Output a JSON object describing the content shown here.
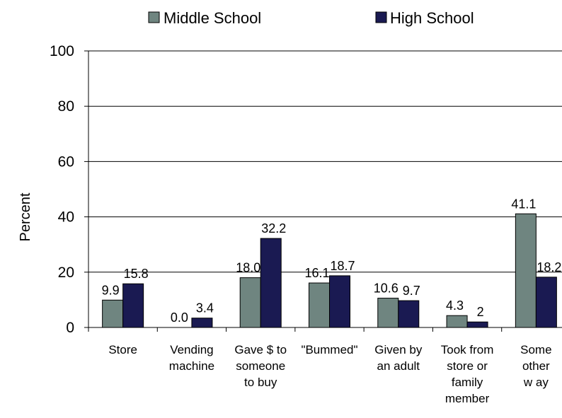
{
  "chart_data": {
    "type": "bar",
    "title": "",
    "xlabel": "",
    "ylabel": "Percent",
    "ylim": [
      0,
      100
    ],
    "yticks": [
      "0",
      "20",
      "40",
      "60",
      "80",
      "100"
    ],
    "grid": true,
    "legend_position": "top",
    "categories": [
      "Store",
      "Vending machine",
      "Gave $ to someone to buy",
      "\"Bummed\"",
      "Given by an adult",
      "Took from store or family member",
      "Some other w ay"
    ],
    "category_lines": [
      [
        "Store"
      ],
      [
        "Vending",
        "machine"
      ],
      [
        "Gave $ to",
        "someone",
        "to buy"
      ],
      [
        "\"Bummed\""
      ],
      [
        "Given by",
        "an adult"
      ],
      [
        "Took from",
        "store or",
        "family",
        "member"
      ],
      [
        "Some",
        "other",
        "w ay"
      ]
    ],
    "series": [
      {
        "name": "Middle School",
        "color": "#6f8580",
        "values": [
          9.9,
          0.0,
          18.0,
          16.1,
          10.6,
          4.3,
          41.1
        ],
        "labels": [
          "9.9",
          "0.0",
          "18.0",
          "16.1",
          "10.6",
          "4.3",
          "41.1"
        ]
      },
      {
        "name": "High School",
        "color": "#1a1a52",
        "values": [
          15.8,
          3.4,
          32.2,
          18.7,
          9.7,
          2,
          18.2
        ],
        "labels": [
          "15.8",
          "3.4",
          "32.2",
          "18.7",
          "9.7",
          "2",
          "18.2"
        ]
      }
    ]
  }
}
